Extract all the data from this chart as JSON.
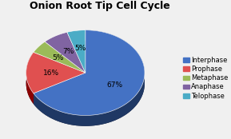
{
  "title": "Onion Root Tip Cell Cycle",
  "labels": [
    "Interphase",
    "Prophase",
    "Metaphase",
    "Anaphase",
    "Telophase"
  ],
  "values": [
    67,
    16,
    5,
    7,
    5
  ],
  "colors": [
    "#4472C4",
    "#E05050",
    "#9BBB59",
    "#8064A2",
    "#4BACC6"
  ],
  "dark_colors": [
    "#1F3864",
    "#8B0000",
    "#4F6228",
    "#3D1E6D",
    "#17375E"
  ],
  "pct_labels": [
    "67%",
    "16%",
    "5%",
    "7%",
    "5%"
  ],
  "startangle": 90,
  "background_color": "#f0f0f0",
  "title_fontsize": 9,
  "legend_fontsize": 6,
  "pct_fontsize": 6.5
}
